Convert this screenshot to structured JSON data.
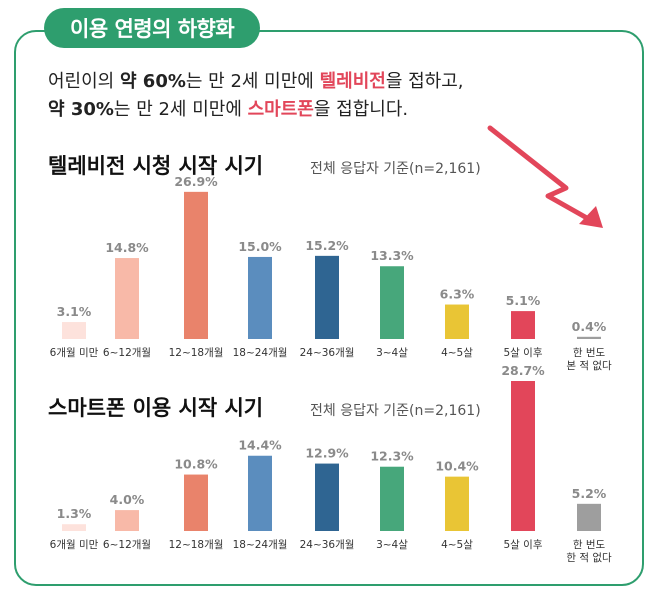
{
  "header": {
    "title": "이용 연령의 하향화"
  },
  "intro": {
    "line1_prefix": "어린이의 ",
    "line1_pct": "약 60%",
    "line1_mid": "는 만 2세 미만에 ",
    "line1_hl": "텔레비전",
    "line1_suffix": "을 접하고,",
    "line2_pct": "약 30%",
    "line2_mid": "는 만 2세 미만에 ",
    "line2_hl": "스마트폰",
    "line2_suffix": "을 접합니다."
  },
  "colors": {
    "frame": "#2e9e6e",
    "highlight": "#e2465a",
    "arrow": "#e2465a"
  },
  "chart_data": [
    {
      "type": "bar",
      "title": "텔레비전 시청 시작 시기",
      "subtitle": "전체 응답자 기준(n=2,161)",
      "categories": [
        "6개월 미만",
        "6~12개월",
        "12~18개월",
        "18~24개월",
        "24~36개월",
        "3~4살",
        "4~5살",
        "5살 이후",
        "한 번도|본 적 없다"
      ],
      "values": [
        3.1,
        14.8,
        26.9,
        15.0,
        15.2,
        13.3,
        6.3,
        5.1,
        0.4
      ],
      "value_labels": [
        "3.1%",
        "14.8%",
        "26.9%",
        "15.0%",
        "15.2%",
        "13.3%",
        "6.3%",
        "5.1%",
        "0.4%"
      ],
      "bar_colors": [
        "#fde2dc",
        "#f8b9a8",
        "#e9836b",
        "#5b8dbe",
        "#2f6592",
        "#47a77b",
        "#e9c535",
        "#e2465a",
        "#9e9e9e"
      ],
      "ylim": [
        0,
        28.7
      ]
    },
    {
      "type": "bar",
      "title": "스마트폰 이용 시작 시기",
      "subtitle": "전체 응답자 기준(n=2,161)",
      "categories": [
        "6개월 미만",
        "6~12개월",
        "12~18개월",
        "18~24개월",
        "24~36개월",
        "3~4살",
        "4~5살",
        "5살 이후",
        "한 번도|한 적 없다"
      ],
      "values": [
        1.3,
        4.0,
        10.8,
        14.4,
        12.9,
        12.3,
        10.4,
        28.7,
        5.2
      ],
      "value_labels": [
        "1.3%",
        "4.0%",
        "10.8%",
        "14.4%",
        "12.9%",
        "12.3%",
        "10.4%",
        "28.7%",
        "5.2%"
      ],
      "bar_colors": [
        "#fde2dc",
        "#f8b9a8",
        "#e9836b",
        "#5b8dbe",
        "#2f6592",
        "#47a77b",
        "#e9c535",
        "#e2465a",
        "#9e9e9e"
      ],
      "ylim": [
        0,
        28.7
      ]
    }
  ]
}
